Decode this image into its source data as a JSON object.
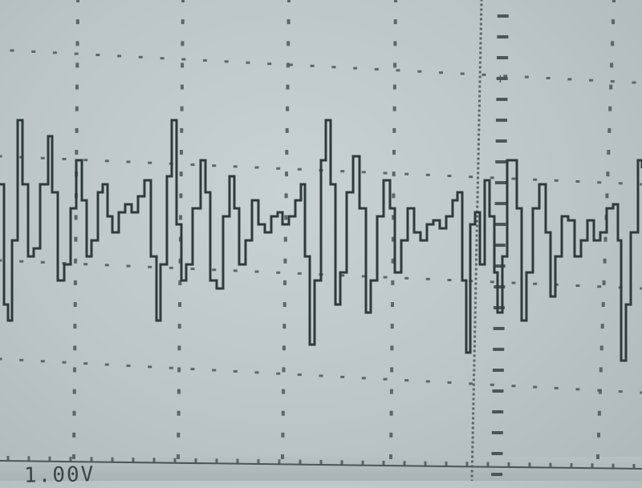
{
  "screen": {
    "subject": "oscilloscope-display",
    "trace_color": "#2f3a3a",
    "grid_color": "#4b5656",
    "background_color": "#c3cccc"
  },
  "readout": {
    "volts_per_div": "1.00V"
  }
}
